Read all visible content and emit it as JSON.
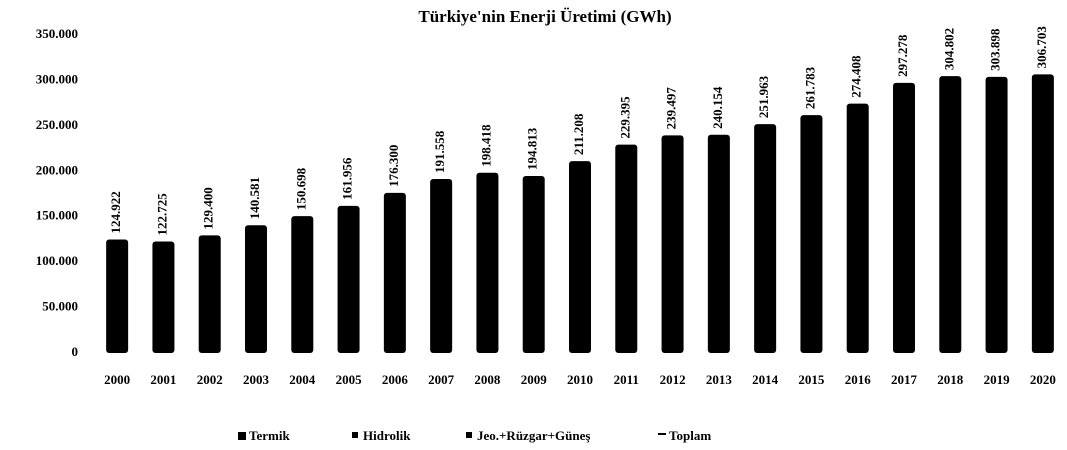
{
  "chart_data": {
    "type": "bar",
    "title": "Türkiye'nin Enerji Üretimi (GWh)",
    "categories": [
      "2000",
      "2001",
      "2002",
      "2003",
      "2004",
      "2005",
      "2006",
      "2007",
      "2008",
      "2009",
      "2010",
      "2011",
      "2012",
      "2013",
      "2014",
      "2015",
      "2016",
      "2017",
      "2018",
      "2019",
      "2020"
    ],
    "series": [
      {
        "name": "Toplam",
        "color": "#000000",
        "values": [
          124922,
          122725,
          129400,
          140581,
          150698,
          161956,
          176300,
          191558,
          198418,
          194813,
          211208,
          229395,
          239497,
          240154,
          251963,
          261783,
          274408,
          297278,
          304802,
          303898,
          306703
        ],
        "value_labels": [
          "124.922",
          "122.725",
          "129.400",
          "140.581",
          "150.698",
          "161.956",
          "176.300",
          "191.558",
          "198.418",
          "194.813",
          "211.208",
          "229.395",
          "239.497",
          "240.154",
          "251.963",
          "261.783",
          "274.408",
          "297.278",
          "304.802",
          "303.898",
          "306.703"
        ]
      }
    ],
    "legend": [
      "Termik",
      "Hidrolik",
      "Jeo.+Rüzgar+Güneş",
      "Toplam"
    ],
    "ylim": [
      0,
      350000
    ],
    "yticks": [
      0,
      {
        "value": 50000,
        "label": "50.000"
      },
      {
        "value": 100000,
        "label": "100.000"
      },
      {
        "value": 150000,
        "label": "150.000"
      },
      {
        "value": 200000,
        "label": "200.000"
      },
      {
        "value": 250000,
        "label": "250.000"
      },
      {
        "value": 300000,
        "label": "300.000"
      },
      {
        "value": 350000,
        "label": "350.000"
      }
    ],
    "grid": false
  }
}
